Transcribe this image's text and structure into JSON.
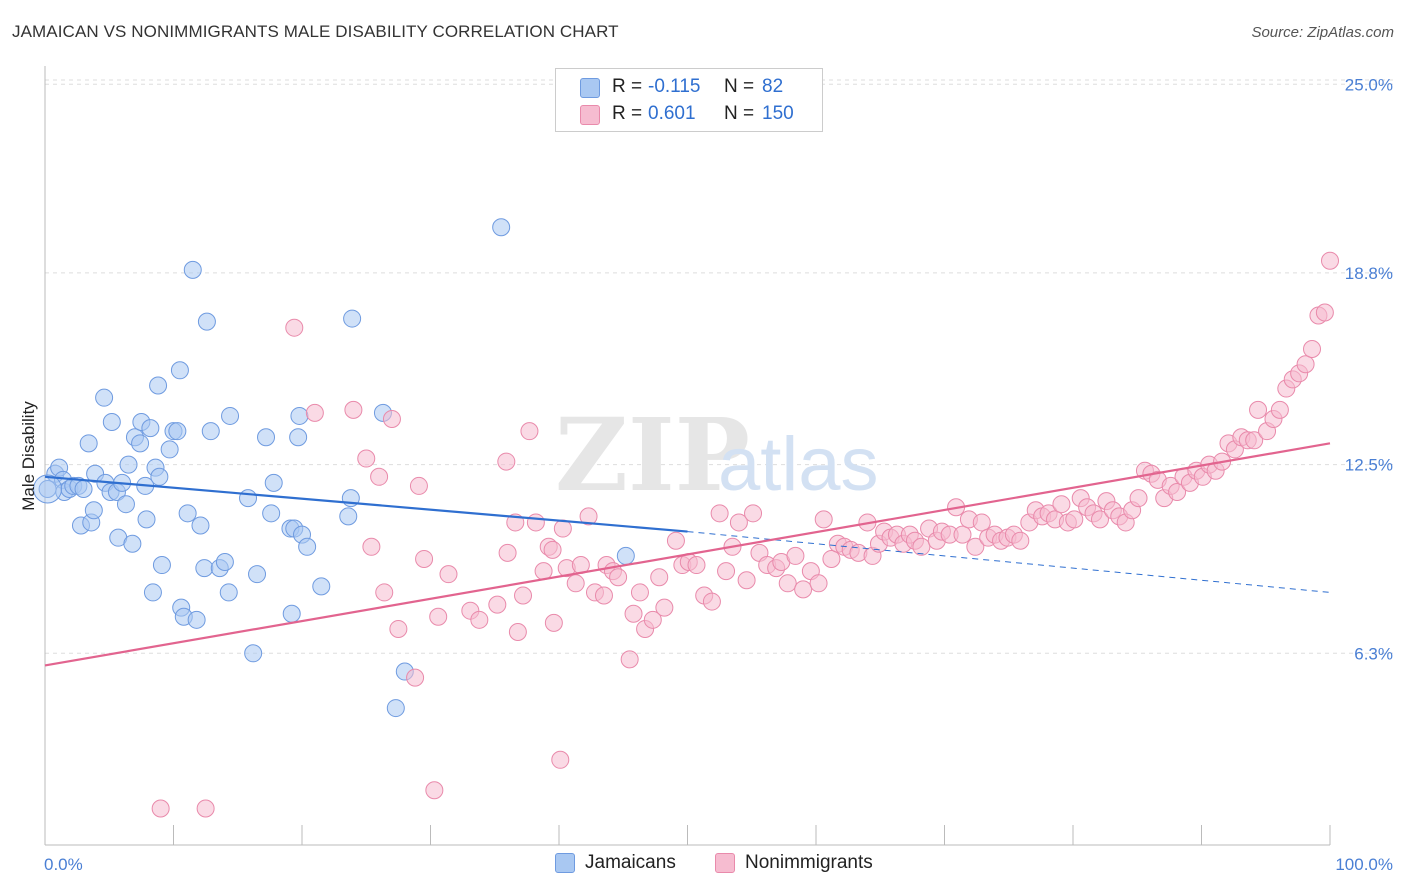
{
  "title": "JAMAICAN VS NONIMMIGRANTS MALE DISABILITY CORRELATION CHART",
  "source": "Source: ZipAtlas.com",
  "watermark": {
    "zip": "ZIP",
    "atlas": "atlas"
  },
  "legend": {
    "rows": [
      {
        "r_label": "R =",
        "r_value": "-0.115",
        "n_label": "N =",
        "n_value": "82",
        "color": "#a9c8f2"
      },
      {
        "r_label": "R =",
        "r_value": "0.601",
        "n_label": "N =",
        "n_value": "150",
        "color": "#f6bcd0"
      }
    ]
  },
  "bottom_legend": [
    {
      "label": "Jamaicans",
      "color": "#a9c8f2"
    },
    {
      "label": "Nonimmigrants",
      "color": "#f6bcd0"
    }
  ],
  "colors": {
    "blue_fill": "#a9c8f2",
    "blue_stroke": "#6f9be0",
    "blue_line": "#2f6fd0",
    "pink_fill": "#f6bcd0",
    "pink_stroke": "#e98aab",
    "pink_line": "#e2648f",
    "axis_text": "#4a7fd4",
    "grid": "#dddddd"
  },
  "chart_data": {
    "type": "scatter",
    "ylabel": "Male Disability",
    "xlabel": "",
    "xlim": [
      0,
      100
    ],
    "ylim": [
      0,
      25.6
    ],
    "y_ticks": [
      6.3,
      12.5,
      18.8,
      25.0
    ],
    "y_tick_labels": [
      "6.3%",
      "12.5%",
      "18.8%",
      "25.0%"
    ],
    "x_tick_labels": [
      "0.0%",
      "100.0%"
    ],
    "grid": true,
    "series": [
      {
        "name": "Jamaicans",
        "trend": {
          "x0": 0,
          "y0": 12.1,
          "x1": 50,
          "y1": 10.3,
          "dashed_to_x": 100,
          "dashed_to_y": 8.3
        },
        "points": [
          [
            0.2,
            11.7
          ],
          [
            0.8,
            12.2
          ],
          [
            1.1,
            12.4
          ],
          [
            1.4,
            12.0
          ],
          [
            1.5,
            11.6
          ],
          [
            1.9,
            11.7
          ],
          [
            2.2,
            11.8
          ],
          [
            2.6,
            11.8
          ],
          [
            2.8,
            10.5
          ],
          [
            3.0,
            11.7
          ],
          [
            3.4,
            13.2
          ],
          [
            3.6,
            10.6
          ],
          [
            3.8,
            11.0
          ],
          [
            3.9,
            12.2
          ],
          [
            4.6,
            14.7
          ],
          [
            4.7,
            11.9
          ],
          [
            5.1,
            11.6
          ],
          [
            5.2,
            13.9
          ],
          [
            5.6,
            11.6
          ],
          [
            5.7,
            10.1
          ],
          [
            6.0,
            11.9
          ],
          [
            6.3,
            11.2
          ],
          [
            6.5,
            12.5
          ],
          [
            6.8,
            9.9
          ],
          [
            7.0,
            13.4
          ],
          [
            7.4,
            13.2
          ],
          [
            7.5,
            13.9
          ],
          [
            7.8,
            11.8
          ],
          [
            7.9,
            10.7
          ],
          [
            8.2,
            13.7
          ],
          [
            8.4,
            8.3
          ],
          [
            8.6,
            12.4
          ],
          [
            8.8,
            15.1
          ],
          [
            8.9,
            12.1
          ],
          [
            9.1,
            9.2
          ],
          [
            9.7,
            13.0
          ],
          [
            10.0,
            13.6
          ],
          [
            10.3,
            13.6
          ],
          [
            10.5,
            15.6
          ],
          [
            10.6,
            7.8
          ],
          [
            10.8,
            7.5
          ],
          [
            11.1,
            10.9
          ],
          [
            11.5,
            18.9
          ],
          [
            11.8,
            7.4
          ],
          [
            12.1,
            10.5
          ],
          [
            12.4,
            9.1
          ],
          [
            12.6,
            17.2
          ],
          [
            12.9,
            13.6
          ],
          [
            13.6,
            9.1
          ],
          [
            14.0,
            9.3
          ],
          [
            14.3,
            8.3
          ],
          [
            14.4,
            14.1
          ],
          [
            15.8,
            11.4
          ],
          [
            16.2,
            6.3
          ],
          [
            16.5,
            8.9
          ],
          [
            17.2,
            13.4
          ],
          [
            17.6,
            10.9
          ],
          [
            17.8,
            11.9
          ],
          [
            19.1,
            10.4
          ],
          [
            19.2,
            7.6
          ],
          [
            19.4,
            10.4
          ],
          [
            19.7,
            13.4
          ],
          [
            19.8,
            14.1
          ],
          [
            20.0,
            10.2
          ],
          [
            20.4,
            9.8
          ],
          [
            21.5,
            8.5
          ],
          [
            23.6,
            10.8
          ],
          [
            23.8,
            11.4
          ],
          [
            23.9,
            17.3
          ],
          [
            26.3,
            14.2
          ],
          [
            27.3,
            4.5
          ],
          [
            28.0,
            5.7
          ],
          [
            35.5,
            20.3
          ],
          [
            45.2,
            9.5
          ]
        ]
      },
      {
        "name": "Nonimmigrants",
        "trend": {
          "x0": 0,
          "y0": 5.9,
          "x1": 100,
          "y1": 13.2
        },
        "points": [
          [
            9.0,
            1.2
          ],
          [
            12.5,
            1.2
          ],
          [
            19.4,
            17.0
          ],
          [
            21.0,
            14.2
          ],
          [
            24.0,
            14.3
          ],
          [
            25.0,
            12.7
          ],
          [
            25.4,
            9.8
          ],
          [
            26.0,
            12.1
          ],
          [
            26.4,
            8.3
          ],
          [
            27.0,
            14.0
          ],
          [
            27.5,
            7.1
          ],
          [
            28.8,
            5.5
          ],
          [
            29.1,
            11.8
          ],
          [
            29.5,
            9.4
          ],
          [
            30.3,
            1.8
          ],
          [
            30.6,
            7.5
          ],
          [
            31.4,
            8.9
          ],
          [
            33.1,
            7.7
          ],
          [
            33.8,
            7.4
          ],
          [
            35.2,
            7.9
          ],
          [
            35.9,
            12.6
          ],
          [
            36.0,
            9.6
          ],
          [
            36.6,
            10.6
          ],
          [
            36.8,
            7.0
          ],
          [
            37.2,
            8.2
          ],
          [
            37.7,
            13.6
          ],
          [
            38.2,
            10.6
          ],
          [
            38.8,
            9.0
          ],
          [
            39.2,
            9.8
          ],
          [
            39.5,
            9.7
          ],
          [
            39.6,
            7.3
          ],
          [
            40.1,
            2.8
          ],
          [
            40.3,
            10.4
          ],
          [
            40.6,
            9.1
          ],
          [
            41.3,
            8.6
          ],
          [
            41.7,
            9.2
          ],
          [
            42.3,
            10.8
          ],
          [
            42.8,
            8.3
          ],
          [
            43.5,
            8.2
          ],
          [
            43.7,
            9.2
          ],
          [
            44.2,
            9.0
          ],
          [
            44.6,
            8.8
          ],
          [
            45.5,
            6.1
          ],
          [
            45.8,
            7.6
          ],
          [
            46.3,
            8.3
          ],
          [
            46.7,
            7.1
          ],
          [
            47.3,
            7.4
          ],
          [
            47.8,
            8.8
          ],
          [
            48.2,
            7.8
          ],
          [
            49.1,
            10.0
          ],
          [
            49.6,
            9.2
          ],
          [
            50.1,
            9.3
          ],
          [
            50.7,
            9.2
          ],
          [
            51.3,
            8.2
          ],
          [
            51.9,
            8.0
          ],
          [
            52.5,
            10.9
          ],
          [
            53.0,
            9.0
          ],
          [
            53.5,
            9.8
          ],
          [
            54.0,
            10.6
          ],
          [
            54.6,
            8.7
          ],
          [
            55.1,
            10.9
          ],
          [
            55.6,
            9.6
          ],
          [
            56.2,
            9.2
          ],
          [
            56.9,
            9.1
          ],
          [
            57.3,
            9.3
          ],
          [
            57.8,
            8.6
          ],
          [
            58.4,
            9.5
          ],
          [
            59.0,
            8.4
          ],
          [
            59.6,
            9.0
          ],
          [
            60.2,
            8.6
          ],
          [
            60.6,
            10.7
          ],
          [
            61.2,
            9.4
          ],
          [
            61.7,
            9.9
          ],
          [
            62.2,
            9.8
          ],
          [
            62.7,
            9.7
          ],
          [
            63.3,
            9.6
          ],
          [
            64.0,
            10.6
          ],
          [
            64.4,
            9.5
          ],
          [
            64.9,
            9.9
          ],
          [
            65.3,
            10.3
          ],
          [
            65.8,
            10.1
          ],
          [
            66.3,
            10.2
          ],
          [
            66.8,
            9.9
          ],
          [
            67.3,
            10.2
          ],
          [
            67.7,
            10.0
          ],
          [
            68.2,
            9.8
          ],
          [
            68.8,
            10.4
          ],
          [
            69.4,
            10.0
          ],
          [
            69.8,
            10.3
          ],
          [
            70.4,
            10.2
          ],
          [
            70.9,
            11.1
          ],
          [
            71.4,
            10.2
          ],
          [
            71.9,
            10.7
          ],
          [
            72.4,
            9.8
          ],
          [
            72.9,
            10.6
          ],
          [
            73.4,
            10.1
          ],
          [
            73.9,
            10.2
          ],
          [
            74.4,
            10.0
          ],
          [
            74.9,
            10.1
          ],
          [
            75.4,
            10.2
          ],
          [
            75.9,
            10.0
          ],
          [
            76.6,
            10.6
          ],
          [
            77.1,
            11.0
          ],
          [
            77.6,
            10.8
          ],
          [
            78.1,
            10.9
          ],
          [
            78.6,
            10.7
          ],
          [
            79.1,
            11.2
          ],
          [
            79.6,
            10.6
          ],
          [
            80.1,
            10.7
          ],
          [
            80.6,
            11.4
          ],
          [
            81.1,
            11.1
          ],
          [
            81.6,
            10.9
          ],
          [
            82.1,
            10.7
          ],
          [
            82.6,
            11.3
          ],
          [
            83.1,
            11.0
          ],
          [
            83.6,
            10.8
          ],
          [
            84.1,
            10.6
          ],
          [
            84.6,
            11.0
          ],
          [
            85.1,
            11.4
          ],
          [
            85.6,
            12.3
          ],
          [
            86.1,
            12.2
          ],
          [
            86.6,
            12.0
          ],
          [
            87.1,
            11.4
          ],
          [
            87.6,
            11.8
          ],
          [
            88.1,
            11.6
          ],
          [
            88.6,
            12.1
          ],
          [
            89.1,
            11.9
          ],
          [
            89.6,
            12.3
          ],
          [
            90.1,
            12.1
          ],
          [
            90.6,
            12.5
          ],
          [
            91.1,
            12.3
          ],
          [
            91.6,
            12.6
          ],
          [
            92.1,
            13.2
          ],
          [
            92.6,
            13.0
          ],
          [
            93.1,
            13.4
          ],
          [
            93.6,
            13.3
          ],
          [
            94.1,
            13.3
          ],
          [
            94.4,
            14.3
          ],
          [
            95.1,
            13.6
          ],
          [
            95.6,
            14.0
          ],
          [
            96.1,
            14.3
          ],
          [
            96.6,
            15.0
          ],
          [
            97.1,
            15.3
          ],
          [
            97.6,
            15.5
          ],
          [
            98.1,
            15.8
          ],
          [
            98.6,
            16.3
          ],
          [
            99.1,
            17.4
          ],
          [
            99.6,
            17.5
          ],
          [
            100.0,
            19.2
          ]
        ]
      }
    ]
  }
}
